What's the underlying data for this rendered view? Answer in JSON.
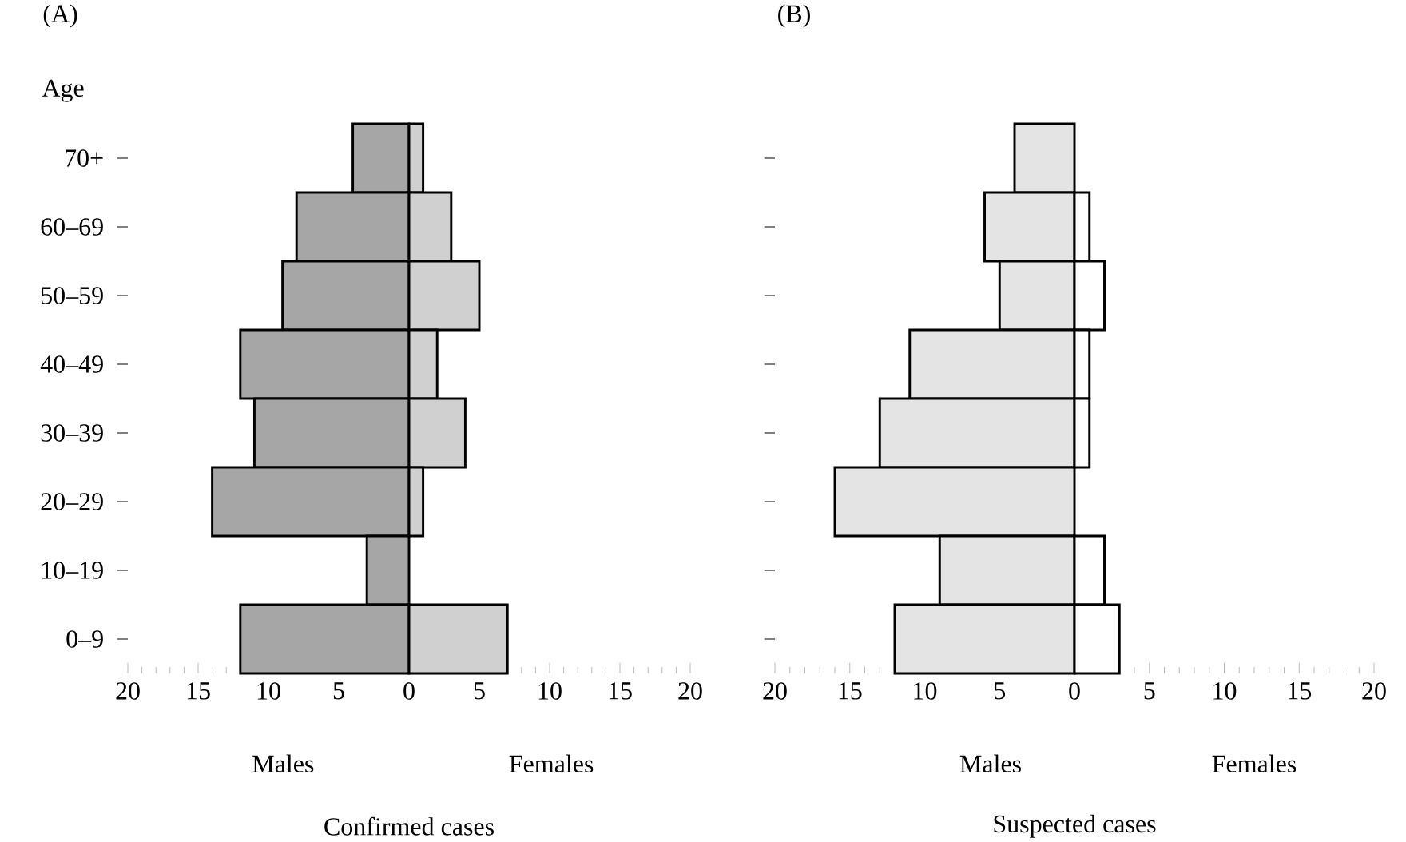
{
  "chart_data": [
    {
      "type": "bar",
      "orientation": "horizontal",
      "stacked": true,
      "title": "(A)",
      "ylabel": "Age",
      "xlabel": "Confirmed cases",
      "categories": [
        "70+",
        "60–69",
        "50–59",
        "40–49",
        "30–39",
        "20–29",
        "10–19",
        "0–9"
      ],
      "series": [
        {
          "name": "Males",
          "color": "#a6a6a6",
          "values": [
            -4,
            -8,
            -9,
            -12,
            -11,
            -14,
            -3,
            -12
          ]
        },
        {
          "name": "Females",
          "color": "#d0d0d0",
          "values": [
            1,
            3,
            5,
            2,
            4,
            1,
            0,
            7
          ]
        }
      ],
      "xlim": [
        -20,
        20
      ],
      "xticks": [
        {
          "value": -20,
          "label": "20"
        },
        {
          "value": -15,
          "label": "15"
        },
        {
          "value": -10,
          "label": "10"
        },
        {
          "value": -5,
          "label": "5"
        },
        0,
        5,
        10,
        15,
        20
      ]
    },
    {
      "type": "bar",
      "orientation": "horizontal",
      "stacked": true,
      "title": "(B)",
      "xlabel": "Suspected cases",
      "categories": [
        null,
        null,
        null,
        null,
        null,
        null,
        null,
        null
      ],
      "series": [
        {
          "name": "Males",
          "color": "#e4e4e4",
          "values": [
            -4,
            -6,
            -5,
            -11,
            -13,
            -16,
            -9,
            -12
          ]
        },
        {
          "name": "Females",
          "color": "#ffffff",
          "values": [
            0,
            1,
            2,
            1,
            1,
            0,
            2,
            3
          ]
        }
      ],
      "xlim": [
        -20,
        20
      ],
      "xticks": [
        {
          "value": -20,
          "label": "20"
        },
        {
          "value": -15,
          "label": "15"
        },
        {
          "value": -10,
          "label": "10"
        },
        {
          "value": -5,
          "label": "5"
        },
        0,
        5,
        10,
        15,
        20
      ]
    }
  ]
}
